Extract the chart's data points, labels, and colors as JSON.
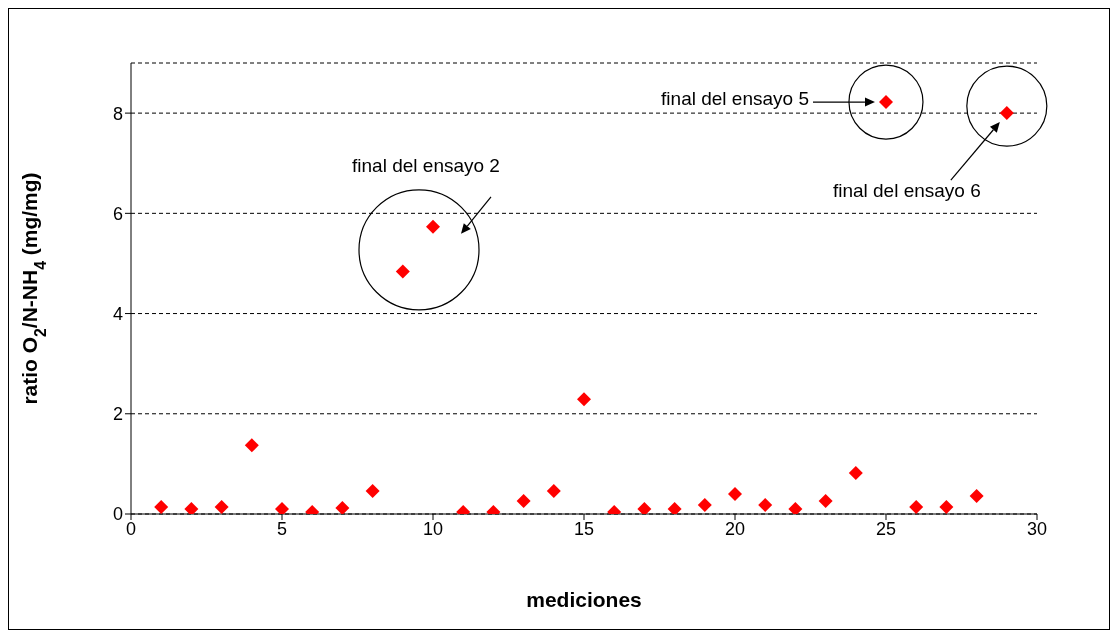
{
  "chart_data": {
    "type": "scatter",
    "xlabel": "mediciones",
    "ylabel": "ratio O$_{2}$/N-NH$_{4}$ (mg/mg)",
    "x": [
      1,
      2,
      3,
      4,
      5,
      6,
      7,
      8,
      9,
      10,
      11,
      12,
      13,
      14,
      15,
      16,
      17,
      18,
      19,
      20,
      21,
      22,
      23,
      24,
      25,
      26,
      27,
      28,
      29
    ],
    "series": [
      {
        "color": "#ff0000",
        "values": [
          0.14,
          0.1,
          0.14,
          1.37,
          0.1,
          0.04,
          0.12,
          0.46,
          4.84,
          5.73,
          0.04,
          0.04,
          0.26,
          0.46,
          2.29,
          0.04,
          0.1,
          0.1,
          0.18,
          0.4,
          0.18,
          0.1,
          0.26,
          0.82,
          8.22,
          0.14,
          0.14,
          0.36,
          8.0
        ]
      }
    ],
    "xlim": [
      0,
      30
    ],
    "xticks": [
      0,
      5,
      10,
      15,
      20,
      25,
      30
    ],
    "ylim": [
      0,
      9
    ],
    "yticks": [
      0,
      2,
      4,
      6,
      8
    ],
    "grid": "y",
    "marker": "diamond",
    "annotations": [
      {
        "text": "final del ensayo 2",
        "x": 10,
        "y": 5.73
      },
      "final del ensayo 5",
      "final del ensayo 6"
    ]
  }
}
